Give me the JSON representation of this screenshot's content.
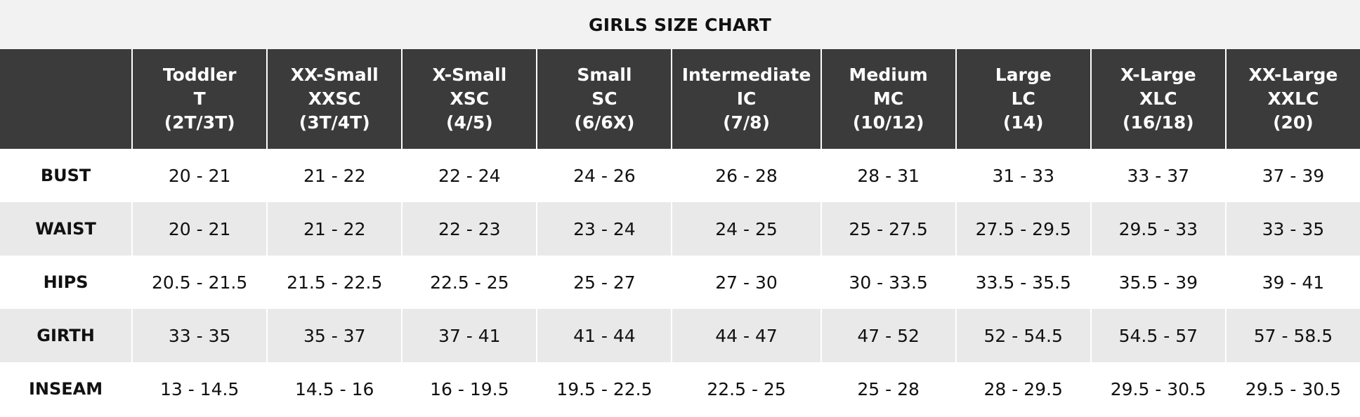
{
  "title": "GIRLS SIZE CHART",
  "columns": [
    {
      "name": "Toddler",
      "code": "T",
      "range": "(2T/3T)"
    },
    {
      "name": "XX-Small",
      "code": "XXSC",
      "range": "(3T/4T)"
    },
    {
      "name": "X-Small",
      "code": "XSC",
      "range": "(4/5)"
    },
    {
      "name": "Small",
      "code": "SC",
      "range": "(6/6X)"
    },
    {
      "name": "Intermediate",
      "code": "IC",
      "range": "(7/8)"
    },
    {
      "name": "Medium",
      "code": "MC",
      "range": "(10/12)"
    },
    {
      "name": "Large",
      "code": "LC",
      "range": "(14)"
    },
    {
      "name": "X-Large",
      "code": "XLC",
      "range": "(16/18)"
    },
    {
      "name": "XX-Large",
      "code": "XXLC",
      "range": "(20)"
    }
  ],
  "rows": [
    {
      "label": "BUST",
      "values": [
        "20 - 21",
        "21 - 22",
        "22 - 24",
        "24 - 26",
        "26 - 28",
        "28 - 31",
        "31 - 33",
        "33 - 37",
        "37 - 39"
      ]
    },
    {
      "label": "WAIST",
      "values": [
        "20 - 21",
        "21 - 22",
        "22 - 23",
        "23 - 24",
        "24 - 25",
        "25 - 27.5",
        "27.5 - 29.5",
        "29.5 - 33",
        "33 - 35"
      ]
    },
    {
      "label": "HIPS",
      "values": [
        "20.5 - 21.5",
        "21.5 - 22.5",
        "22.5 - 25",
        "25 - 27",
        "27 - 30",
        "30 - 33.5",
        "33.5 - 35.5",
        "35.5 - 39",
        "39 - 41"
      ]
    },
    {
      "label": "GIRTH",
      "values": [
        "33 - 35",
        "35 - 37",
        "37 - 41",
        "41 - 44",
        "44 - 47",
        "47 - 52",
        "52 - 54.5",
        "54.5 - 57",
        "57 - 58.5"
      ]
    },
    {
      "label": "INSEAM",
      "values": [
        "13 - 14.5",
        "14.5 - 16",
        "16 - 19.5",
        "19.5 - 22.5",
        "22.5 - 25",
        "25 - 28",
        "28 - 29.5",
        "29.5 - 30.5",
        "29.5 - 30.5"
      ]
    }
  ],
  "colors": {
    "title_background": "#f2f2f2",
    "header_background": "#3c3b3b",
    "header_text": "#ffffff",
    "shaded_row": "#e9e9e9",
    "plain_row": "#ffffff"
  }
}
